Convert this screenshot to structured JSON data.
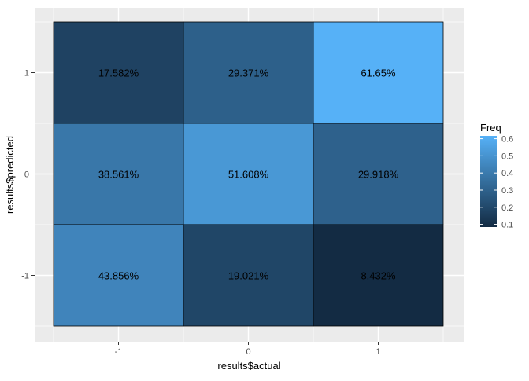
{
  "chart_data": {
    "type": "heatmap",
    "title": "",
    "xlabel": "results$actual",
    "ylabel": "results$predicted",
    "x_categories": [
      "-1",
      "0",
      "1"
    ],
    "y_categories": [
      "-1",
      "0",
      "1"
    ],
    "cells": [
      {
        "x": "-1",
        "y": "1",
        "value": 0.17582,
        "label": "17.582%"
      },
      {
        "x": "0",
        "y": "1",
        "value": 0.29371,
        "label": "29.371%"
      },
      {
        "x": "1",
        "y": "1",
        "value": 0.6165,
        "label": "61.65%"
      },
      {
        "x": "-1",
        "y": "0",
        "value": 0.38561,
        "label": "38.561%"
      },
      {
        "x": "0",
        "y": "0",
        "value": 0.51608,
        "label": "51.608%"
      },
      {
        "x": "1",
        "y": "0",
        "value": 0.29918,
        "label": "29.918%"
      },
      {
        "x": "-1",
        "y": "-1",
        "value": 0.43856,
        "label": "43.856%"
      },
      {
        "x": "0",
        "y": "-1",
        "value": 0.19021,
        "label": "19.021%"
      },
      {
        "x": "1",
        "y": "-1",
        "value": 0.08432,
        "label": "8.432%"
      }
    ],
    "legend": {
      "title": "Freq",
      "placement": "right",
      "ticks": [
        "0.1",
        "0.2",
        "0.3",
        "0.4",
        "0.5",
        "0.6"
      ],
      "tick_values": [
        0.1,
        0.2,
        0.3,
        0.4,
        0.5,
        0.6
      ],
      "range": [
        0.08432,
        0.6165
      ],
      "low_color": "#132B43",
      "high_color": "#56B1F7"
    },
    "grid": true,
    "panel_background": "#EBEBEB",
    "grid_color": "#FFFFFF",
    "tile_border_color": "#000000"
  }
}
